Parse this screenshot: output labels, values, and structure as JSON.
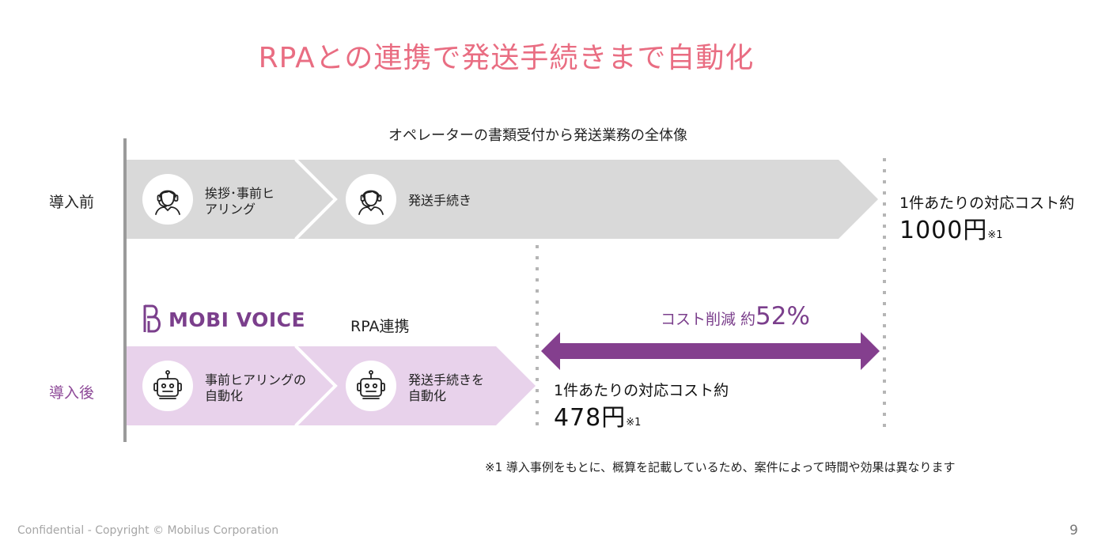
{
  "title": "RPAとの連携で発送手続きまで自動化",
  "overview": "オペレーターの書類受付から発送業務の全体像",
  "before": {
    "label": "導入前",
    "steps": [
      {
        "line1": "挨拶･事前ヒ",
        "line2": "アリング",
        "icon": "operator-headset-icon"
      },
      {
        "line1": "発送手続き",
        "line2": "",
        "icon": "operator-headset-icon"
      }
    ],
    "cost_label": "1件あたりの対応コスト約",
    "cost_value": "1000円",
    "cost_note": "※1"
  },
  "after": {
    "label": "導入後",
    "logo_text": "MOBI VOICE",
    "rpa_label": "RPA連携",
    "steps": [
      {
        "line1": "事前ヒアリングの",
        "line2": "自動化",
        "icon": "robot-icon"
      },
      {
        "line1": "発送手続きを",
        "line2": "自動化",
        "icon": "robot-icon"
      }
    ],
    "cost_label": "1件あたりの対応コスト約",
    "cost_value": "478円",
    "cost_note": "※1"
  },
  "reduction": {
    "prefix": "コスト削減 約",
    "value": "52%"
  },
  "footnote": "※1 導入事例をもとに、概算を記載しているため、案件によって時間や効果は異なります",
  "copyright": "Confidential - Copyright © Mobilus Corporation",
  "page_number": "9",
  "colors": {
    "title": "#e96d82",
    "accent_purple": "#7b3f8c",
    "before_band": "#d9d9d9",
    "after_band": "#e8d2eb"
  }
}
